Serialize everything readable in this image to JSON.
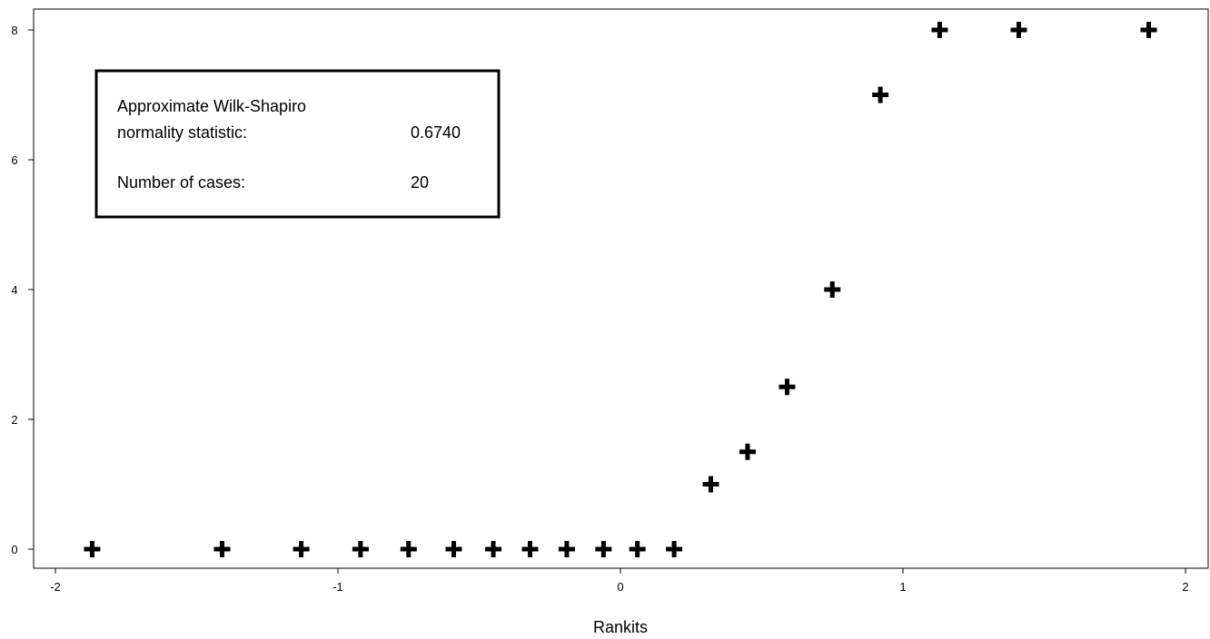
{
  "chart_data": {
    "type": "scatter",
    "title": "",
    "xlabel": "Rankits",
    "ylabel": "",
    "xlim": [
      -2.07,
      2.07
    ],
    "ylim": [
      -0.35,
      8.3
    ],
    "xticks": [
      -2,
      -1,
      0,
      1,
      2
    ],
    "xtick_labels": [
      "-2",
      "-1",
      "0",
      "1",
      "2"
    ],
    "yticks": [
      0,
      2,
      4,
      6,
      8
    ],
    "ytick_labels": [
      "0",
      "2",
      "4",
      "6",
      "8"
    ],
    "grid": false,
    "marker": "plus",
    "marker_color": "#000000",
    "points": [
      {
        "x": -1.87,
        "y": 0
      },
      {
        "x": -1.41,
        "y": 0
      },
      {
        "x": -1.13,
        "y": 0
      },
      {
        "x": -0.92,
        "y": 0
      },
      {
        "x": -0.75,
        "y": 0
      },
      {
        "x": -0.59,
        "y": 0
      },
      {
        "x": -0.45,
        "y": 0
      },
      {
        "x": -0.32,
        "y": 0
      },
      {
        "x": -0.19,
        "y": 0
      },
      {
        "x": -0.06,
        "y": 0
      },
      {
        "x": 0.06,
        "y": 0
      },
      {
        "x": 0.19,
        "y": 0
      },
      {
        "x": 0.32,
        "y": 1
      },
      {
        "x": 0.45,
        "y": 1.5
      },
      {
        "x": 0.59,
        "y": 2.5
      },
      {
        "x": 0.75,
        "y": 4
      },
      {
        "x": 0.92,
        "y": 7
      },
      {
        "x": 1.13,
        "y": 8
      },
      {
        "x": 1.41,
        "y": 8
      },
      {
        "x": 1.87,
        "y": 8
      }
    ],
    "annotation": {
      "label_line1": "Approximate Wilk-Shapiro",
      "label_line2": "normality statistic:",
      "statistic_value": "0.6740",
      "cases_label": "Number of cases:",
      "cases_value": "20"
    }
  }
}
